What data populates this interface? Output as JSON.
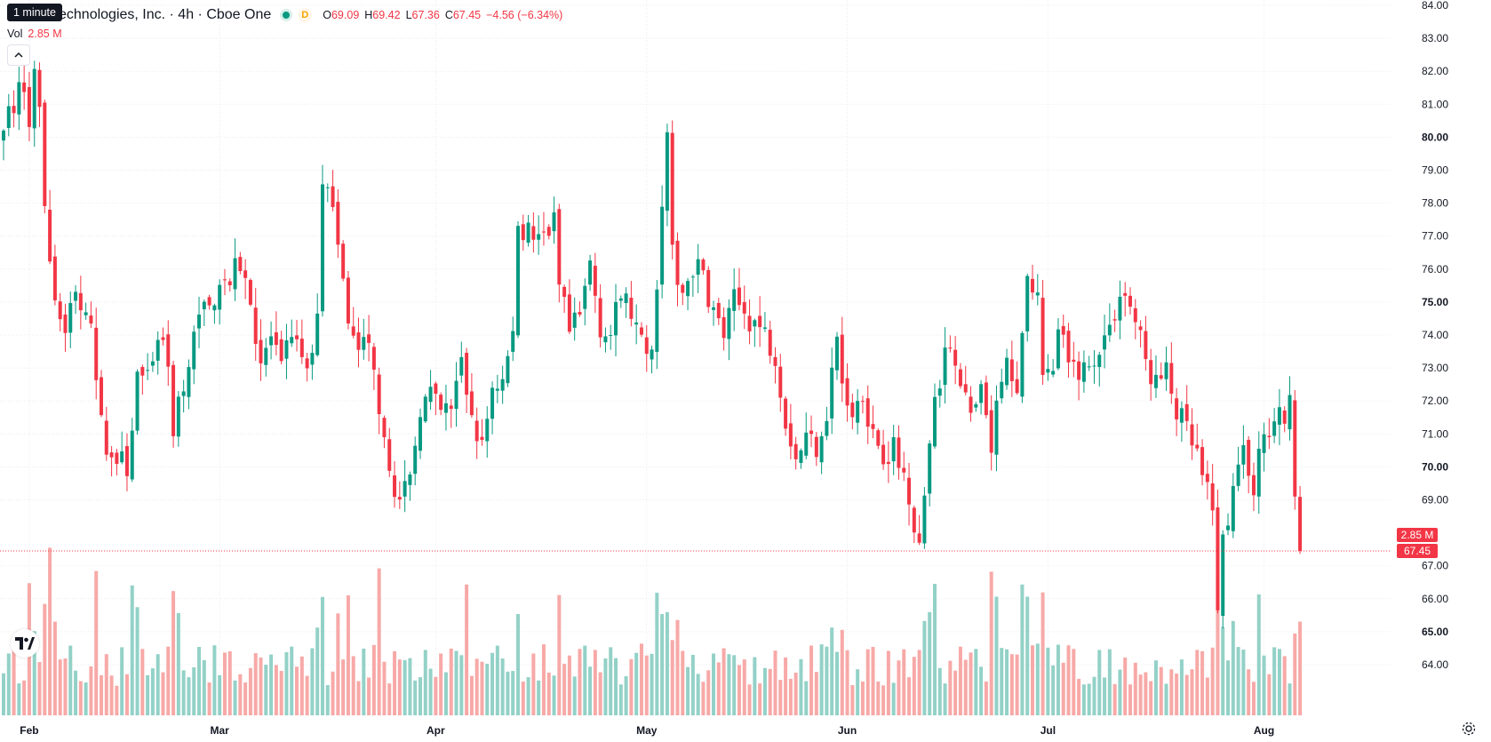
{
  "legend": {
    "tooltip": "1 minute",
    "symbol": "echnologies, Inc. · 4h · Cboe One",
    "d_badge": "D",
    "o_label": "O",
    "o_value": "69.09",
    "h_label": "H",
    "h_value": "69.42",
    "l_label": "L",
    "l_value": "67.36",
    "c_label": "C",
    "c_value": "67.45",
    "change": "−4.56 (−6.34%)",
    "vol_label": "Vol",
    "vol_value": "2.85 M"
  },
  "badges": {
    "volume": "2.85 M",
    "price": "67.45"
  },
  "colors": {
    "up": "#089981",
    "down": "#f23645",
    "up_vol": "#93d1c7",
    "down_vol": "#f7a9a7"
  },
  "chart_data": {
    "type": "candlestick",
    "title": "",
    "xlabel": "",
    "ylabel": "",
    "ylim": [
      63.8,
      84.0
    ],
    "y_ticks": [
      "84.00",
      "83.00",
      "82.00",
      "81.00",
      "80.00",
      "79.00",
      "78.00",
      "77.00",
      "76.00",
      "75.00",
      "74.00",
      "73.00",
      "72.00",
      "71.00",
      "70.00",
      "69.00",
      "67.00",
      "66.00",
      "65.00",
      "64.00"
    ],
    "bold_ticks": [
      "80.00",
      "75.00",
      "70.00",
      "65.00"
    ],
    "x_labels": [
      "Feb",
      "Mar",
      "Apr",
      "May",
      "Jun",
      "Jul",
      "Aug"
    ],
    "last_price": 67.45,
    "grid": true,
    "anchors": [
      [
        0,
        80.2
      ],
      [
        1,
        81.2
      ],
      [
        2,
        80.5
      ],
      [
        3,
        81.9
      ],
      [
        4,
        81.2
      ],
      [
        5,
        80.3
      ],
      [
        6,
        81.7
      ],
      [
        7,
        81.1
      ],
      [
        8,
        77.7
      ],
      [
        10,
        74.9
      ],
      [
        12,
        74.3
      ],
      [
        14,
        75.4
      ],
      [
        17,
        73.9
      ],
      [
        19,
        71.2
      ],
      [
        21,
        70.3
      ],
      [
        24,
        70.0
      ],
      [
        26,
        72.7
      ],
      [
        28,
        72.5
      ],
      [
        31,
        74.0
      ],
      [
        33,
        71.2
      ],
      [
        36,
        72.8
      ],
      [
        38,
        75.0
      ],
      [
        40,
        74.7
      ],
      [
        42,
        75.8
      ],
      [
        44,
        75.6
      ],
      [
        46,
        76.2
      ],
      [
        48,
        75.0
      ],
      [
        50,
        73.2
      ],
      [
        52,
        73.9
      ],
      [
        54,
        72.8
      ],
      [
        56,
        74.2
      ],
      [
        58,
        73.0
      ],
      [
        60,
        73.1
      ],
      [
        61,
        75.0
      ],
      [
        62,
        79.0
      ],
      [
        64,
        77.6
      ],
      [
        66,
        75.5
      ],
      [
        68,
        73.7
      ],
      [
        71,
        73.5
      ],
      [
        73,
        72.0
      ],
      [
        75,
        70.2
      ],
      [
        77,
        68.8
      ],
      [
        79,
        69.5
      ],
      [
        81,
        71.9
      ],
      [
        83,
        72.1
      ],
      [
        85,
        71.6
      ],
      [
        87,
        71.8
      ],
      [
        89,
        73.1
      ],
      [
        91,
        71.6
      ],
      [
        93,
        70.5
      ],
      [
        95,
        72.5
      ],
      [
        97,
        72.6
      ],
      [
        99,
        74.0
      ],
      [
        100,
        77.4
      ],
      [
        102,
        77.1
      ],
      [
        104,
        76.8
      ],
      [
        107,
        77.4
      ],
      [
        108,
        75.5
      ],
      [
        110,
        74.0
      ],
      [
        112,
        74.5
      ],
      [
        114,
        76.2
      ],
      [
        116,
        74.3
      ],
      [
        118,
        74.0
      ],
      [
        120,
        75.2
      ],
      [
        122,
        74.7
      ],
      [
        124,
        73.6
      ],
      [
        126,
        73.3
      ],
      [
        128,
        78.2
      ],
      [
        129,
        79.8
      ],
      [
        130,
        76.3
      ],
      [
        132,
        75.3
      ],
      [
        134,
        76.1
      ],
      [
        136,
        75.8
      ],
      [
        138,
        74.7
      ],
      [
        140,
        74.0
      ],
      [
        142,
        75.0
      ],
      [
        144,
        74.7
      ],
      [
        146,
        74.4
      ],
      [
        148,
        74.0
      ],
      [
        150,
        73.5
      ],
      [
        152,
        71.5
      ],
      [
        154,
        70.3
      ],
      [
        156,
        70.9
      ],
      [
        158,
        70.7
      ],
      [
        160,
        71.7
      ],
      [
        162,
        74.0
      ],
      [
        163,
        72.4
      ],
      [
        165,
        71.6
      ],
      [
        167,
        72.3
      ],
      [
        169,
        71.0
      ],
      [
        171,
        70.5
      ],
      [
        173,
        70.5
      ],
      [
        174,
        70.1
      ],
      [
        176,
        69.3
      ],
      [
        178,
        67.6
      ],
      [
        179,
        68.8
      ],
      [
        180,
        70.9
      ],
      [
        182,
        72.6
      ],
      [
        184,
        73.8
      ],
      [
        186,
        72.8
      ],
      [
        188,
        71.3
      ],
      [
        190,
        72.2
      ],
      [
        192,
        70.5
      ],
      [
        193,
        71.8
      ],
      [
        195,
        73.1
      ],
      [
        197,
        72.6
      ],
      [
        199,
        75.7
      ],
      [
        201,
        75.6
      ],
      [
        202,
        73.0
      ],
      [
        204,
        72.7
      ],
      [
        205,
        74.3
      ],
      [
        207,
        73.0
      ],
      [
        209,
        73.0
      ],
      [
        211,
        72.9
      ],
      [
        213,
        73.8
      ],
      [
        215,
        74.1
      ],
      [
        217,
        75.4
      ],
      [
        219,
        74.9
      ],
      [
        220,
        74.4
      ],
      [
        222,
        73.2
      ],
      [
        224,
        72.5
      ],
      [
        226,
        72.8
      ],
      [
        228,
        71.7
      ],
      [
        230,
        71.0
      ],
      [
        232,
        70.3
      ],
      [
        233,
        69.6
      ],
      [
        235,
        68.6
      ],
      [
        236,
        65.9
      ],
      [
        237,
        67.8
      ],
      [
        239,
        69.3
      ],
      [
        241,
        70.7
      ],
      [
        243,
        69.4
      ],
      [
        244,
        70.2
      ],
      [
        246,
        71.1
      ],
      [
        248,
        71.4
      ],
      [
        250,
        71.8
      ],
      [
        251,
        69.1
      ],
      [
        252,
        67.45
      ]
    ],
    "series": [
      {
        "name": "Price",
        "o": [],
        "h": [],
        "l": [],
        "c": []
      },
      {
        "name": "Vol",
        "values": []
      }
    ]
  }
}
